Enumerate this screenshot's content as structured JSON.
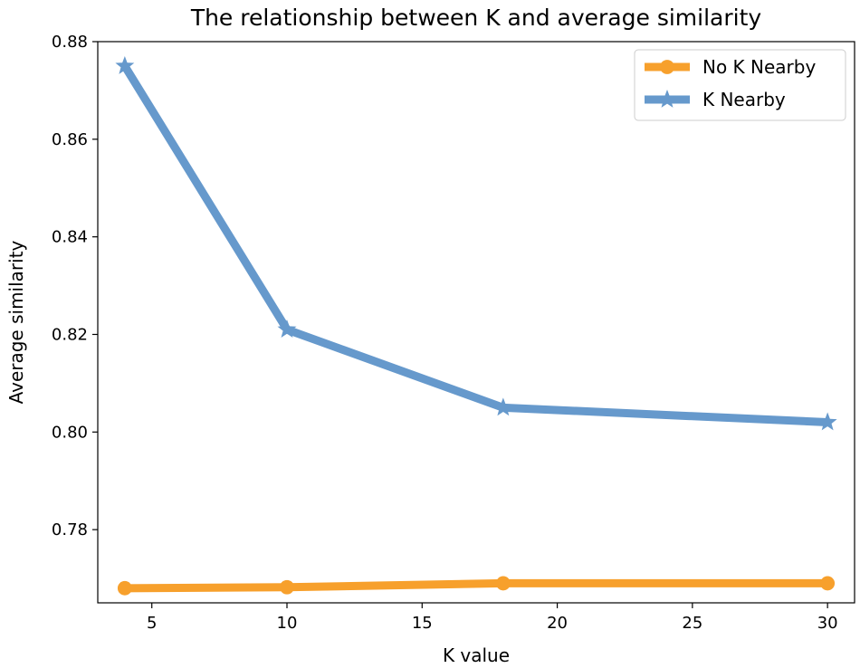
{
  "chart_data": {
    "type": "line",
    "title": "The relationship between K and average similarity",
    "xlabel": "K value",
    "ylabel": "Average similarity",
    "xlim": [
      3,
      31
    ],
    "ylim": [
      0.765,
      0.88
    ],
    "x_ticks": [
      5,
      10,
      15,
      20,
      25,
      30
    ],
    "y_ticks": [
      0.78,
      0.8,
      0.82,
      0.84,
      0.86,
      0.88
    ],
    "grid": false,
    "legend_position": "top-right",
    "series": [
      {
        "name": "No K Nearby",
        "color": "#f7a02c",
        "marker": "circle",
        "x": [
          4,
          10,
          18,
          30
        ],
        "values": [
          0.768,
          0.7682,
          0.769,
          0.769
        ]
      },
      {
        "name": "K Nearby",
        "color": "#6699cc",
        "marker": "star",
        "x": [
          4,
          10,
          18,
          30
        ],
        "values": [
          0.875,
          0.821,
          0.805,
          0.802
        ]
      }
    ]
  }
}
